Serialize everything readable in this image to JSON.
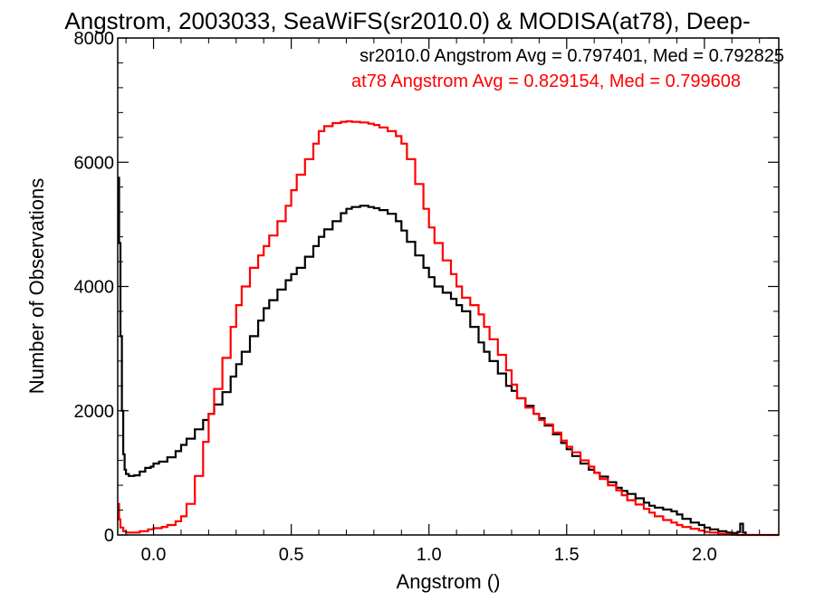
{
  "chart_data": {
    "type": "line",
    "title": "Angstrom, 2003033, SeaWiFS(sr2010.0) & MODISA(at78), Deep-",
    "xlabel": "Angstrom ()",
    "ylabel": "Number of Observations",
    "xlim": [
      -0.13,
      2.27
    ],
    "ylim": [
      0,
      8000
    ],
    "x_ticks": [
      0.0,
      0.5,
      1.0,
      1.5,
      2.0
    ],
    "x_tick_labels": [
      "0.0",
      "0.5",
      "1.0",
      "1.5",
      "2.0"
    ],
    "y_ticks": [
      0,
      2000,
      4000,
      6000,
      8000
    ],
    "y_tick_labels": [
      "0",
      "2000",
      "4000",
      "6000",
      "8000"
    ],
    "grid": false,
    "annotations": [
      {
        "text": "sr2010.0 Angstrom Avg = 0.797401, Med = 0.792825",
        "color": "#000000"
      },
      {
        "text": "at78 Angstrom Avg = 0.829154, Med = 0.799608",
        "color": "#ff0000"
      }
    ],
    "series": [
      {
        "color": "#000000",
        "x": [
          -0.13,
          -0.125,
          -0.12,
          -0.115,
          -0.11,
          -0.105,
          -0.1,
          -0.09,
          -0.07,
          -0.05,
          -0.03,
          -0.01,
          0.0,
          0.02,
          0.05,
          0.08,
          0.1,
          0.12,
          0.15,
          0.18,
          0.2,
          0.22,
          0.25,
          0.28,
          0.3,
          0.32,
          0.35,
          0.38,
          0.4,
          0.42,
          0.45,
          0.48,
          0.5,
          0.52,
          0.55,
          0.58,
          0.6,
          0.62,
          0.65,
          0.68,
          0.7,
          0.72,
          0.75,
          0.78,
          0.8,
          0.82,
          0.85,
          0.88,
          0.9,
          0.92,
          0.95,
          0.98,
          1.0,
          1.02,
          1.05,
          1.08,
          1.1,
          1.12,
          1.15,
          1.18,
          1.2,
          1.22,
          1.25,
          1.28,
          1.3,
          1.32,
          1.35,
          1.38,
          1.4,
          1.42,
          1.45,
          1.48,
          1.5,
          1.52,
          1.55,
          1.58,
          1.6,
          1.62,
          1.65,
          1.68,
          1.7,
          1.72,
          1.75,
          1.78,
          1.8,
          1.82,
          1.85,
          1.88,
          1.9,
          1.92,
          1.95,
          1.98,
          2.0,
          2.02,
          2.05,
          2.08,
          2.1,
          2.12,
          2.13,
          2.14,
          2.15
        ],
        "values": [
          5750,
          4700,
          3200,
          2000,
          1300,
          1050,
          980,
          950,
          960,
          1020,
          1080,
          1100,
          1150,
          1180,
          1250,
          1350,
          1450,
          1550,
          1700,
          1850,
          1950,
          2100,
          2300,
          2550,
          2750,
          2950,
          3200,
          3450,
          3650,
          3780,
          3950,
          4100,
          4200,
          4300,
          4480,
          4650,
          4800,
          4920,
          5050,
          5180,
          5250,
          5280,
          5300,
          5280,
          5260,
          5230,
          5170,
          5050,
          4900,
          4720,
          4500,
          4300,
          4150,
          4000,
          3900,
          3800,
          3700,
          3600,
          3350,
          3100,
          2950,
          2800,
          2600,
          2400,
          2320,
          2200,
          2080,
          1950,
          1880,
          1760,
          1620,
          1480,
          1380,
          1270,
          1150,
          1050,
          1000,
          940,
          850,
          760,
          710,
          660,
          590,
          520,
          470,
          440,
          410,
          380,
          330,
          260,
          200,
          160,
          120,
          90,
          60,
          40,
          30,
          50,
          180,
          40,
          0
        ]
      },
      {
        "color": "#ff0000",
        "x": [
          -0.13,
          -0.125,
          -0.12,
          -0.11,
          -0.1,
          -0.08,
          -0.05,
          -0.02,
          0.0,
          0.03,
          0.05,
          0.08,
          0.1,
          0.12,
          0.15,
          0.18,
          0.2,
          0.22,
          0.25,
          0.28,
          0.3,
          0.32,
          0.35,
          0.38,
          0.4,
          0.42,
          0.45,
          0.48,
          0.5,
          0.52,
          0.55,
          0.58,
          0.6,
          0.62,
          0.65,
          0.68,
          0.7,
          0.72,
          0.75,
          0.78,
          0.8,
          0.82,
          0.85,
          0.88,
          0.9,
          0.92,
          0.95,
          0.98,
          1.0,
          1.02,
          1.05,
          1.08,
          1.1,
          1.12,
          1.15,
          1.18,
          1.2,
          1.22,
          1.25,
          1.28,
          1.3,
          1.32,
          1.35,
          1.38,
          1.4,
          1.42,
          1.45,
          1.48,
          1.5,
          1.52,
          1.55,
          1.58,
          1.6,
          1.62,
          1.65,
          1.68,
          1.7,
          1.72,
          1.75,
          1.78,
          1.8,
          1.82,
          1.85,
          1.88,
          1.9,
          1.92,
          1.95,
          1.98,
          2.0,
          2.02,
          2.05,
          2.08,
          2.1,
          2.12,
          2.15,
          2.2,
          2.27
        ],
        "values": [
          500,
          250,
          120,
          60,
          40,
          40,
          60,
          90,
          110,
          130,
          160,
          220,
          300,
          500,
          950,
          1500,
          1950,
          2350,
          2850,
          3350,
          3700,
          4000,
          4300,
          4500,
          4650,
          4820,
          5050,
          5300,
          5550,
          5800,
          6050,
          6300,
          6500,
          6580,
          6630,
          6650,
          6660,
          6650,
          6640,
          6620,
          6600,
          6560,
          6500,
          6420,
          6300,
          6050,
          5650,
          5250,
          4950,
          4700,
          4420,
          4200,
          4000,
          3820,
          3700,
          3550,
          3350,
          3150,
          2900,
          2650,
          2420,
          2200,
          2050,
          1950,
          1850,
          1780,
          1650,
          1520,
          1420,
          1330,
          1200,
          1100,
          1000,
          900,
          800,
          720,
          640,
          560,
          490,
          420,
          360,
          300,
          240,
          200,
          160,
          130,
          100,
          70,
          50,
          40,
          20,
          10,
          5,
          0,
          0,
          0,
          0
        ]
      }
    ]
  }
}
